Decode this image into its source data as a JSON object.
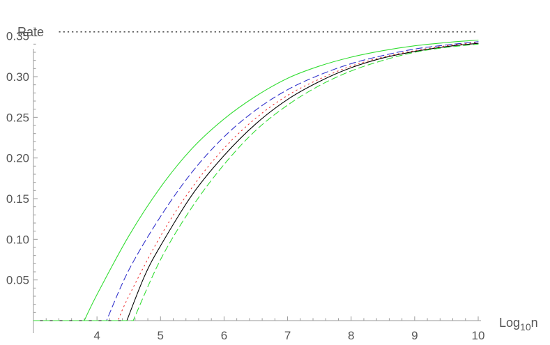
{
  "chart_data": {
    "type": "line",
    "title": "",
    "xlabel": "Log10n",
    "ylabel": "Rate",
    "xlim": [
      3,
      10
    ],
    "ylim": [
      0,
      0.36
    ],
    "grid": false,
    "legend": "none",
    "x_ticks": [
      "4",
      "5",
      "6",
      "7",
      "8",
      "9",
      "10"
    ],
    "y_ticks": [
      "0.05",
      "0.10",
      "0.15",
      "0.20",
      "0.25",
      "0.30",
      "0.35"
    ],
    "asymptote": {
      "y": 0.355,
      "style": "dotted",
      "color": "#000000"
    },
    "series": [
      {
        "color": "#33dd33",
        "style": "solid",
        "x": [
          3.0,
          3.8,
          4.0,
          4.5,
          5.0,
          5.5,
          6.0,
          6.5,
          7.0,
          7.5,
          8.0,
          8.5,
          9.0,
          9.5,
          10.0
        ],
        "y": [
          0.0,
          0.0,
          0.032,
          0.104,
          0.164,
          0.212,
          0.248,
          0.276,
          0.298,
          0.313,
          0.324,
          0.332,
          0.338,
          0.342,
          0.345
        ]
      },
      {
        "color": "#3333cc",
        "style": "dashed",
        "x": [
          3.0,
          4.15,
          4.5,
          5.0,
          5.5,
          6.0,
          6.5,
          7.0,
          7.5,
          8.0,
          8.5,
          9.0,
          9.5,
          10.0
        ],
        "y": [
          0.0,
          0.0,
          0.062,
          0.128,
          0.183,
          0.226,
          0.259,
          0.284,
          0.302,
          0.316,
          0.326,
          0.334,
          0.339,
          0.343
        ]
      },
      {
        "color": "#ee3333",
        "style": "dotted",
        "x": [
          3.0,
          4.33,
          4.5,
          5.0,
          5.5,
          6.0,
          6.5,
          7.0,
          7.5,
          8.0,
          8.5,
          9.0,
          9.5,
          10.0
        ],
        "y": [
          0.0,
          0.0,
          0.03,
          0.104,
          0.164,
          0.212,
          0.249,
          0.277,
          0.297,
          0.313,
          0.324,
          0.332,
          0.338,
          0.342
        ]
      },
      {
        "color": "#000000",
        "style": "solid",
        "x": [
          3.0,
          4.47,
          4.75,
          5.0,
          5.5,
          6.0,
          6.5,
          7.0,
          7.5,
          8.0,
          8.5,
          9.0,
          9.5,
          10.0
        ],
        "y": [
          0.0,
          0.0,
          0.055,
          0.092,
          0.155,
          0.203,
          0.242,
          0.272,
          0.294,
          0.311,
          0.323,
          0.331,
          0.337,
          0.341
        ]
      },
      {
        "color": "#33dd33",
        "style": "dashed",
        "x": [
          3.0,
          4.57,
          5.0,
          5.5,
          6.0,
          6.5,
          7.0,
          7.5,
          8.0,
          8.5,
          9.0,
          9.5,
          10.0
        ],
        "y": [
          0.0,
          0.0,
          0.075,
          0.14,
          0.192,
          0.234,
          0.265,
          0.289,
          0.307,
          0.32,
          0.33,
          0.336,
          0.34
        ]
      }
    ]
  }
}
